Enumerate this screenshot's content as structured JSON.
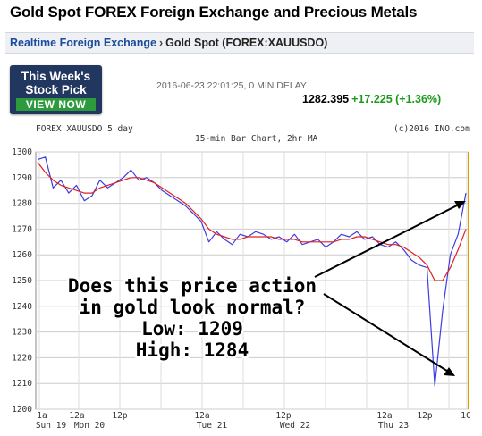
{
  "page": {
    "title": "Gold Spot FOREX Foreign Exchange and Precious Metals"
  },
  "breadcrumb": {
    "link": "Realtime Foreign Exchange",
    "separator": "›",
    "current": "Gold Spot (FOREX:XAUUSDO)"
  },
  "ad": {
    "line1": "This Week's",
    "line2": "Stock Pick",
    "button": "VIEW NOW"
  },
  "quote": {
    "timestamp": "2016-06-23 22:01:25, 0 MIN DELAY",
    "price": "1282.395",
    "change": "+17.225 (+1.36%)"
  },
  "colors": {
    "price_line": "#3d3de0",
    "moving_average": "#e02020",
    "change_positive": "#1a9a1a",
    "current_price_marker": "#e0a000"
  },
  "chart": {
    "header_left": "FOREX XAUUSDO 5 day",
    "header_center": "15-min Bar Chart, 2hr MA",
    "header_right": "(c)2016 INO.com",
    "annotation": {
      "line1": "Does this price action",
      "line2": "in gold look normal?",
      "line3": "Low: 1209",
      "line4": "High: 1284"
    }
  },
  "chart_data": {
    "type": "line",
    "title": "15-min Bar Chart, 2hr MA",
    "ylim": [
      1200,
      1300
    ],
    "y_ticks": [
      "1300",
      "1290",
      "1280",
      "1270",
      "1260",
      "1250",
      "1240",
      "1230",
      "1220",
      "1210",
      "1200"
    ],
    "x_ticks": [
      "1a",
      "12a",
      "12p",
      "12a",
      "12p",
      "12a",
      "12p",
      "12a",
      "12p",
      "1C"
    ],
    "x_day_labels": [
      "Sun 19",
      "Mon 20",
      "Tue 21",
      "Wed 22",
      "Thu 23"
    ],
    "grid": true,
    "series": [
      {
        "values": [
          1297,
          1298,
          1286,
          1289,
          1284,
          1287,
          1281,
          1283,
          1289,
          1286,
          1288,
          1290,
          1293,
          1289,
          1290,
          1288,
          1285,
          1283,
          1281,
          1279,
          1276,
          1273,
          1265,
          1269,
          1266,
          1264,
          1268,
          1267,
          1269,
          1268,
          1266,
          1267,
          1265,
          1268,
          1264,
          1265,
          1266,
          1263,
          1265,
          1268,
          1267,
          1269,
          1266,
          1267,
          1264,
          1263,
          1265,
          1262,
          1258,
          1256,
          1255,
          1209,
          1238,
          1260,
          1268,
          1284
        ]
      },
      {
        "values": [
          1296,
          1292,
          1289,
          1287,
          1286,
          1285,
          1284,
          1284,
          1286,
          1287,
          1288,
          1289,
          1290,
          1290,
          1289,
          1288,
          1286,
          1284,
          1282,
          1280,
          1277,
          1274,
          1270,
          1268,
          1267,
          1266,
          1266,
          1267,
          1267,
          1267,
          1267,
          1266,
          1266,
          1266,
          1265,
          1265,
          1265,
          1265,
          1265,
          1266,
          1266,
          1267,
          1267,
          1266,
          1265,
          1264,
          1264,
          1263,
          1261,
          1259,
          1256,
          1250,
          1250,
          1255,
          1262,
          1270
        ]
      }
    ],
    "current_value": 1282.395
  }
}
